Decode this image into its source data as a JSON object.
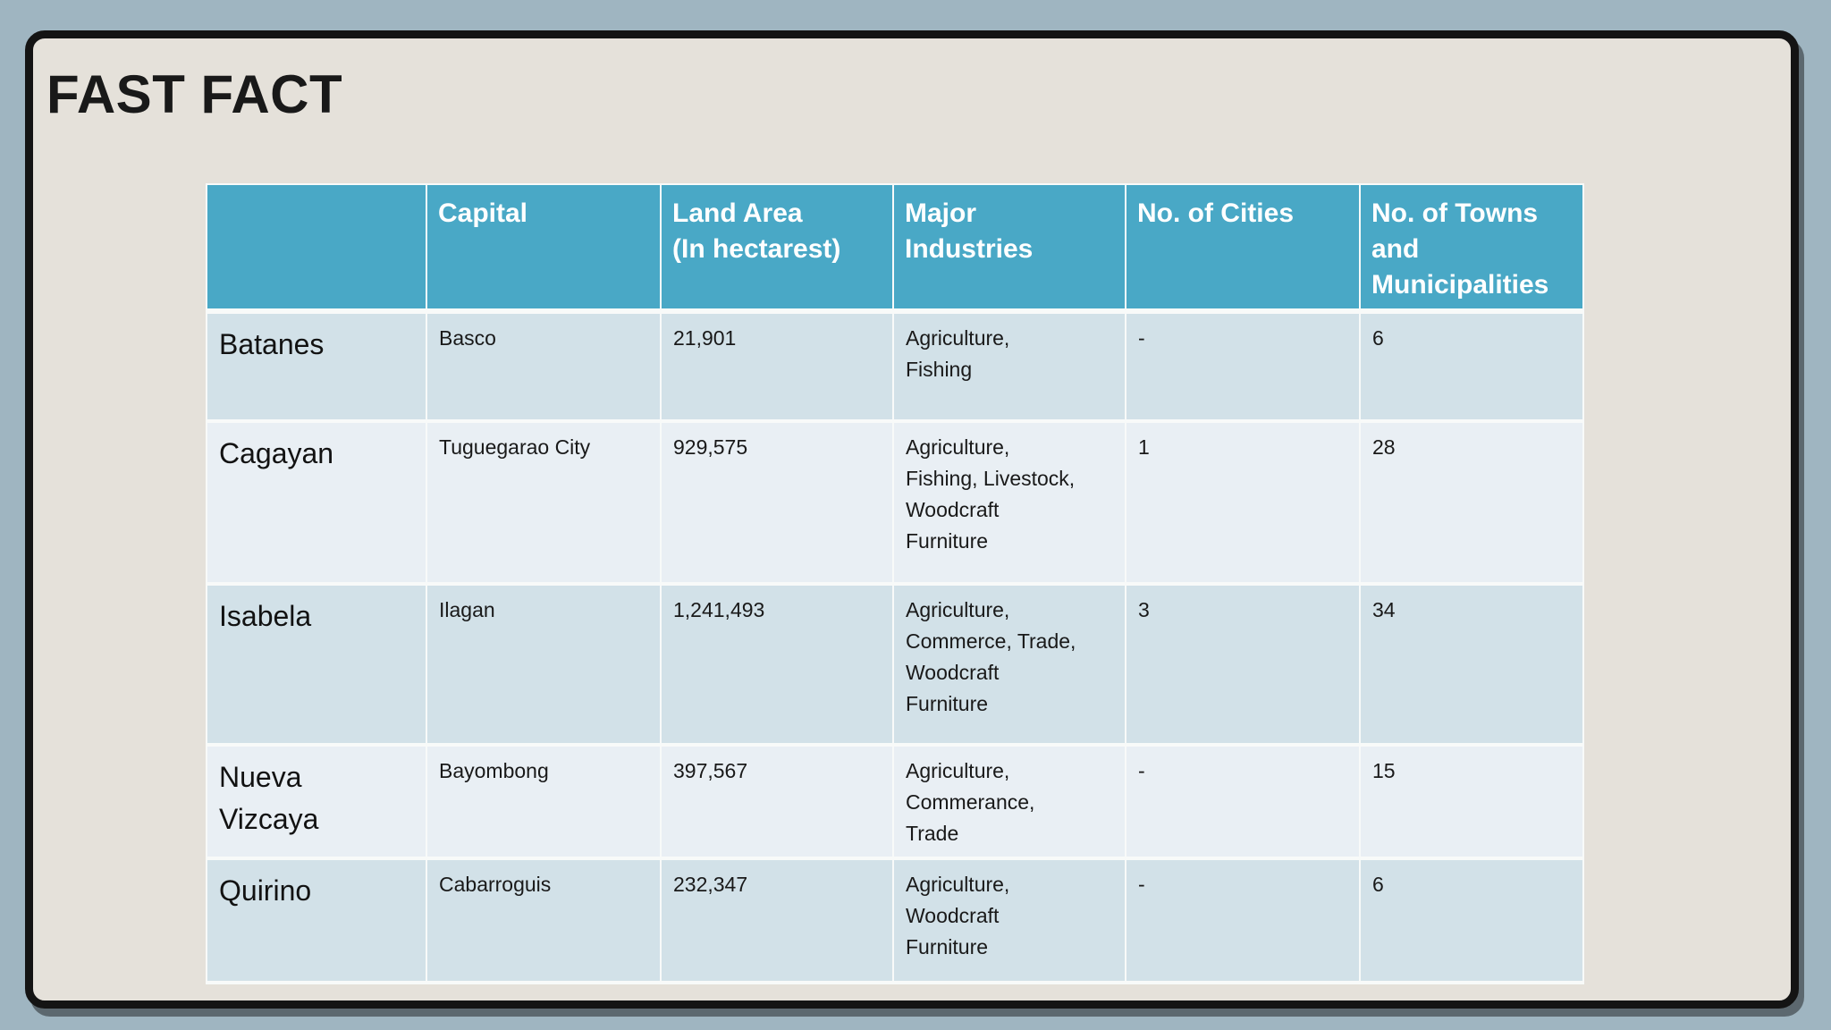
{
  "slide": {
    "title": "FAST FACT"
  },
  "colors": {
    "canvas_bg": "#9fb5c1",
    "card_bg": "#e5e1da",
    "header_bg": "#49a8c6",
    "header_text": "#ffffff",
    "row_odd_bg": "#d2e1e8",
    "row_even_bg": "#e9eff4",
    "body_text": "#191919"
  },
  "table": {
    "columns": [
      {
        "key": "province",
        "label": ""
      },
      {
        "key": "capital",
        "label": "Capital"
      },
      {
        "key": "land_area",
        "label": "Land Area\n(In hectarest)"
      },
      {
        "key": "industries",
        "label": "Major\nIndustries"
      },
      {
        "key": "cities",
        "label": "No. of Cities"
      },
      {
        "key": "towns",
        "label": "No. of Towns\nand\nMunicipalities"
      }
    ],
    "rows": [
      {
        "province": "Batanes",
        "capital": "Basco",
        "land_area": "21,901",
        "industries": "Agriculture,\nFishing",
        "cities": "-",
        "towns": "6"
      },
      {
        "province": "Cagayan",
        "capital": "Tuguegarao City",
        "land_area": "929,575",
        "industries": "Agriculture,\nFishing, Livestock,\nWoodcraft\nFurniture",
        "cities": "1",
        "towns": "28"
      },
      {
        "province": "Isabela",
        "capital": "Ilagan",
        "land_area": "1,241,493",
        "industries": "Agriculture,\nCommerce, Trade,\nWoodcraft\nFurniture",
        "cities": "3",
        "towns": "34"
      },
      {
        "province": "Nueva\nVizcaya",
        "capital": "Bayombong",
        "land_area": "397,567",
        "industries": "Agriculture,\nCommerance,\nTrade",
        "cities": "-",
        "towns": "15"
      },
      {
        "province": "Quirino",
        "capital": "Cabarroguis",
        "land_area": "232,347",
        "industries": "Agriculture,\nWoodcraft\nFurniture",
        "cities": "-",
        "towns": "6"
      }
    ]
  }
}
